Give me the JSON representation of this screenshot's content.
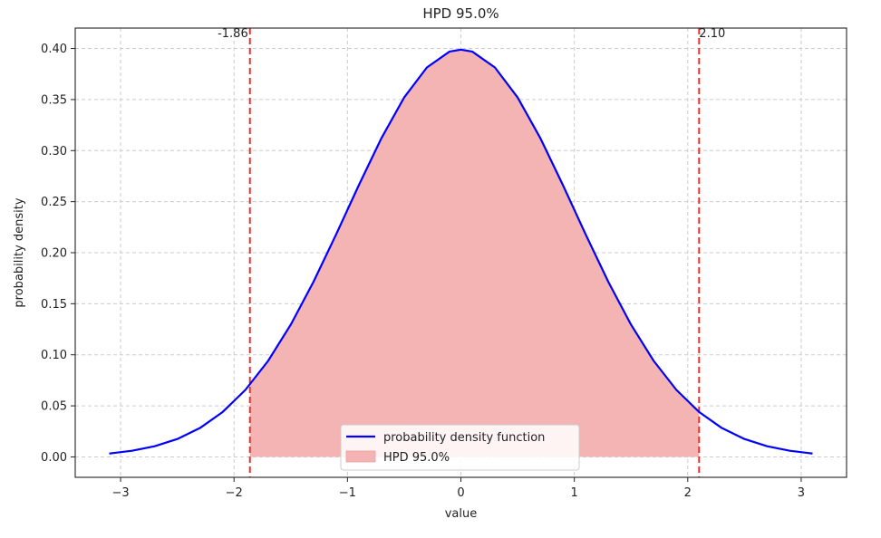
{
  "chart_data": {
    "type": "area",
    "title": "HPD 95.0%",
    "xlabel": "value",
    "ylabel": "probability density",
    "xlim": [
      -3.4,
      3.4
    ],
    "ylim": [
      -0.02,
      0.42
    ],
    "x_ticks": [
      -3,
      -2,
      -1,
      0,
      1,
      2,
      3
    ],
    "x_tick_labels": [
      "−3",
      "−2",
      "−1",
      "0",
      "1",
      "2",
      "3"
    ],
    "y_ticks": [
      0.0,
      0.05,
      0.1,
      0.15,
      0.2,
      0.25,
      0.3,
      0.35,
      0.4
    ],
    "y_tick_labels": [
      "0.00",
      "0.05",
      "0.10",
      "0.15",
      "0.20",
      "0.25",
      "0.30",
      "0.35",
      "0.40"
    ],
    "grid": true,
    "series": [
      {
        "name": "probability density function",
        "kind": "line",
        "color": "#0000ff",
        "x": [
          -3.1,
          -2.9,
          -2.7,
          -2.5,
          -2.3,
          -2.1,
          -1.9,
          -1.7,
          -1.5,
          -1.3,
          -1.1,
          -0.9,
          -0.7,
          -0.5,
          -0.3,
          -0.1,
          0.0,
          0.1,
          0.3,
          0.5,
          0.7,
          0.9,
          1.1,
          1.3,
          1.5,
          1.7,
          1.9,
          2.1,
          2.3,
          2.5,
          2.7,
          2.9,
          3.1
        ],
        "y": [
          0.0033,
          0.006,
          0.0104,
          0.0175,
          0.0283,
          0.044,
          0.0656,
          0.094,
          0.1295,
          0.1714,
          0.2179,
          0.2661,
          0.3123,
          0.3521,
          0.3814,
          0.397,
          0.3989,
          0.397,
          0.3814,
          0.3521,
          0.3123,
          0.2661,
          0.2179,
          0.1714,
          0.1295,
          0.094,
          0.0656,
          0.044,
          0.0283,
          0.0175,
          0.0104,
          0.006,
          0.0033
        ]
      },
      {
        "name": "HPD 95.0%",
        "kind": "fill",
        "color": "#f4b4b4",
        "x_range": [
          -1.86,
          2.1
        ]
      }
    ],
    "vlines": [
      {
        "x": -1.86,
        "label": "-1.86",
        "color": "#e8302a",
        "style": "dashed"
      },
      {
        "x": 2.1,
        "label": "2.10",
        "color": "#e8302a",
        "style": "dashed"
      }
    ],
    "legend": {
      "placement": "lower-center",
      "entries": [
        "probability density function",
        "HPD 95.0%"
      ]
    }
  }
}
